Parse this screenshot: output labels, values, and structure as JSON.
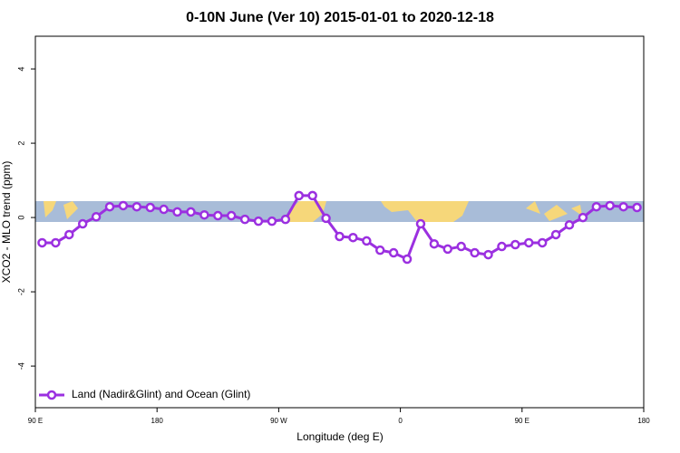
{
  "chart_data": {
    "type": "line",
    "title": "0-10N June (Ver 10)   2015-01-01 to 2020-12-18",
    "x_label": "Longitude (deg E)",
    "y_label": "XCO2 - MLO trend (ppm)",
    "xlim": [
      90,
      540
    ],
    "ylim": [
      -5.12,
      4.88
    ],
    "xticks": [
      {
        "value": 90,
        "label": "90 E"
      },
      {
        "value": 180,
        "label": "180"
      },
      {
        "value": 270,
        "label": "90 W"
      },
      {
        "value": 360,
        "label": "0"
      },
      {
        "value": 450,
        "label": "90 E"
      },
      {
        "value": 540,
        "label": "180"
      }
    ],
    "yticks": [
      4,
      2,
      0,
      -2,
      -4
    ],
    "legend": "bottomleft",
    "x": [
      95,
      105,
      115,
      125,
      135,
      145,
      155,
      165,
      175,
      185,
      195,
      205,
      215,
      225,
      235,
      245,
      255,
      265,
      275,
      285,
      295,
      305,
      315,
      325,
      335,
      345,
      355,
      365,
      375,
      385,
      395,
      405,
      415,
      425,
      435,
      445,
      455,
      465,
      475,
      485,
      495,
      505,
      515,
      525,
      535
    ],
    "series": [
      {
        "name": "Land (Nadir&Glint) and Ocean (Glint)",
        "color": "#9b30e0",
        "values": [
          -0.68,
          -0.68,
          -0.46,
          -0.17,
          0.02,
          0.29,
          0.32,
          0.29,
          0.27,
          0.22,
          0.15,
          0.15,
          0.07,
          0.05,
          0.05,
          -0.05,
          -0.1,
          -0.1,
          -0.05,
          0.59,
          0.59,
          -0.02,
          -0.51,
          -0.54,
          -0.63,
          -0.88,
          -0.95,
          -1.12,
          -0.17,
          -0.71,
          -0.85,
          -0.78,
          -0.95,
          -1.0,
          -0.78,
          -0.73,
          -0.68,
          -0.68,
          -0.46,
          -0.2,
          0.0,
          0.29,
          0.32,
          0.29,
          0.27
        ]
      }
    ]
  }
}
